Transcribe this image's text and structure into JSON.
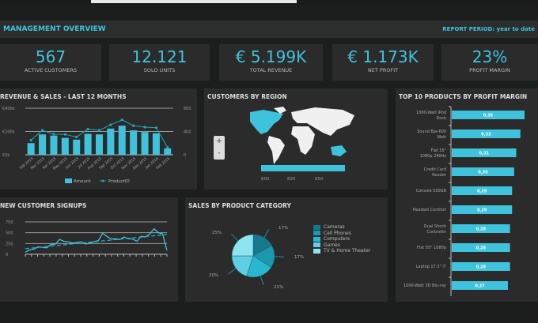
{
  "header": {
    "title": "MANAGEMENT OVERVIEW",
    "report_period": "REPORT PERIOD: year to date"
  },
  "kpis": [
    {
      "value": "567",
      "label": "ACTIVE CUSTOMERS"
    },
    {
      "value": "12.121",
      "label": "SOLD UNITS"
    },
    {
      "value": "€ 5.199K",
      "label": "TOTAL REVENUE"
    },
    {
      "value": "€ 1.173K",
      "label": "NET PROFIT"
    },
    {
      "value": "23%",
      "label": "PROFIT MARGIN"
    }
  ],
  "colors": {
    "accent": "#3fc3dc",
    "panel": "#2b2b2b",
    "background": "#1c1d1d"
  },
  "chart_data": [
    {
      "type": "bar",
      "title": "REVENUE & SALES -  LAST 12 MONTHS",
      "categories": [
        "Feb 2015",
        "Mar 2015",
        "Apr 2015",
        "May 2015",
        "Jun 2015",
        "Jul 2015",
        "Aug 2015",
        "Sep 2015",
        "Oct 2015",
        "Nov 2015",
        "Dec 2015",
        "Jan 2016",
        "Feb 2016"
      ],
      "series": [
        {
          "name": "Amount",
          "type": "bar",
          "axis": "left",
          "values": [
            100,
            175,
            165,
            145,
            130,
            180,
            175,
            225,
            250,
            210,
            195,
            185,
            55
          ]
        },
        {
          "name": "ProductID",
          "type": "line",
          "axis": "right",
          "values": [
            250,
            420,
            355,
            350,
            305,
            440,
            420,
            515,
            600,
            500,
            475,
            465,
            125
          ]
        }
      ],
      "y_left_ticks": [
        "€0k",
        "€200k",
        "€400k"
      ],
      "ylim_left": [
        0,
        400
      ],
      "y_right_ticks": [
        "0",
        "400",
        "800"
      ],
      "ylim_right": [
        0,
        800
      ],
      "legend": "bottom",
      "grid": true
    },
    {
      "type": "line",
      "title": "NEW CUSTOMER SIGNUPS",
      "series": [
        {
          "values": [
            52,
            100,
            120,
            170,
            160,
            150,
            230,
            235,
            345,
            300,
            290,
            260,
            275,
            290,
            240,
            255,
            295,
            315,
            485,
            415,
            355,
            360,
            340,
            400,
            360,
            355,
            300,
            420,
            400,
            470,
            590,
            500,
            470,
            90
          ]
        },
        {
          "style": "dashed-trend",
          "values": [
            130,
            460
          ]
        }
      ],
      "y_ticks": [
        "0",
        "250",
        "500",
        "750"
      ],
      "ylim": [
        0,
        750
      ],
      "grid": true
    },
    {
      "type": "pie",
      "title": "SALES BY PRODUCT CATEGORY",
      "slices": [
        {
          "name": "Cameras",
          "value": 17,
          "label": "17%",
          "color": "#16788c"
        },
        {
          "name": "Cell Phones",
          "value": 17,
          "label": "17%",
          "color": "#1c97ad"
        },
        {
          "name": "Computers",
          "value": 21,
          "label": "21%",
          "color": "#29b6cf"
        },
        {
          "name": "Games",
          "value": 20,
          "label": "20%",
          "color": "#5fd0e3"
        },
        {
          "name": "TV & Home Theater",
          "value": 25,
          "label": "25%",
          "color": "#8ee3f0"
        }
      ],
      "legend": "right"
    },
    {
      "type": "bar",
      "orientation": "horizontal",
      "title": "TOP 10 PRODUCTS BY PROFIT MARGIN",
      "categories": [
        "1000-Watt iPod Dock",
        "Sound Bar-600 Watt",
        "Flat 55\" 1080p 240Hz",
        "Credit Card Reader",
        "Console 500GB",
        "Headset Comfort",
        "Dual Shock Controller",
        "Flat 55\" 1080p",
        "Laptop 17.3\" i7",
        "1000-Watt 3D Blu-ray"
      ],
      "values": [
        0.35,
        0.33,
        0.31,
        0.3,
        0.29,
        0.29,
        0.28,
        0.28,
        0.28,
        0.27
      ],
      "labels": [
        "0,35",
        "0,33",
        "0,31",
        "0,30",
        "0,29",
        "0,29",
        "0,28",
        "0,28",
        "0,28",
        "0,27"
      ]
    }
  ],
  "map": {
    "title": "CUSTOMERS BY REGION",
    "zoom_in": "+",
    "zoom_out": "-",
    "scale_ticks": [
      "800",
      "825",
      "850"
    ]
  }
}
